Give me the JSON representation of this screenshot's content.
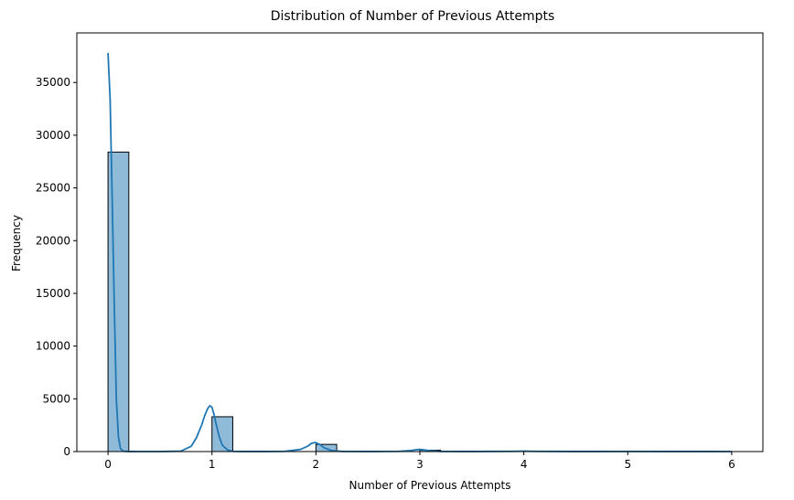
{
  "chart_data": {
    "type": "bar",
    "title": "Distribution of Number of Previous Attempts",
    "xlabel": "Number of Previous Attempts",
    "ylabel": "Frequency",
    "xlim": [
      -0.3,
      6.3
    ],
    "ylim": [
      0,
      39700
    ],
    "xticks": [
      0,
      1,
      2,
      3,
      4,
      5,
      6
    ],
    "yticks": [
      0,
      5000,
      10000,
      15000,
      20000,
      25000,
      30000,
      35000
    ],
    "bin_width": 0.2,
    "bins": [
      {
        "x_start": 0.0,
        "value": 28400
      },
      {
        "x_start": 1.0,
        "value": 3300
      },
      {
        "x_start": 2.0,
        "value": 680
      },
      {
        "x_start": 3.0,
        "value": 130
      },
      {
        "x_start": 4.0,
        "value": 30
      },
      {
        "x_start": 5.0,
        "value": 10
      },
      {
        "x_start": 5.8,
        "value": 5
      }
    ],
    "kde": {
      "name": "KDE",
      "x": [
        0.0,
        0.02,
        0.04,
        0.06,
        0.08,
        0.1,
        0.12,
        0.14,
        0.16,
        0.18,
        0.2,
        0.3,
        0.5,
        0.7,
        0.8,
        0.85,
        0.9,
        0.93,
        0.96,
        0.98,
        1.0,
        1.02,
        1.04,
        1.07,
        1.1,
        1.15,
        1.2,
        1.3,
        1.5,
        1.7,
        1.85,
        1.92,
        1.96,
        2.0,
        2.04,
        2.08,
        2.15,
        2.25,
        2.5,
        2.8,
        2.9,
        2.97,
        3.0,
        3.03,
        3.1,
        3.2,
        3.5,
        3.9,
        4.0,
        4.1,
        4.5,
        5.0,
        5.5,
        6.0
      ],
      "y": [
        37800,
        33500,
        24000,
        14000,
        5000,
        1400,
        300,
        80,
        20,
        8,
        5,
        3,
        3,
        40,
        500,
        1300,
        2500,
        3400,
        4100,
        4350,
        4200,
        3500,
        2600,
        1400,
        600,
        150,
        20,
        5,
        5,
        20,
        200,
        500,
        800,
        850,
        650,
        350,
        100,
        15,
        5,
        20,
        80,
        180,
        200,
        170,
        70,
        15,
        5,
        20,
        45,
        20,
        5,
        10,
        5,
        3
      ]
    },
    "colors": {
      "bar_fill": "#1f77b4",
      "bar_fill_opacity": 0.5,
      "bar_edge": "#000000",
      "kde_line": "#1f77b4",
      "axes": "#000000"
    },
    "grid": false
  }
}
